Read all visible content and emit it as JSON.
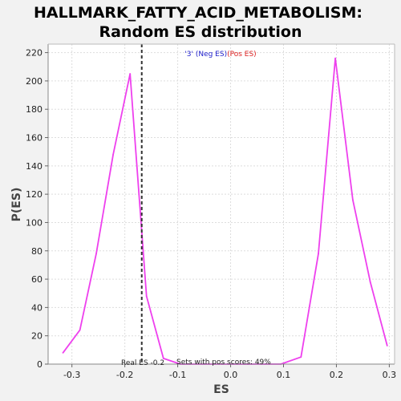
{
  "chart_data": {
    "type": "line",
    "title": "HALLMARK_FATTY_ACID_METABOLISM:",
    "subtitle": "Random ES distribution",
    "xlabel": "ES",
    "ylabel": "P(ES)",
    "xlim": [
      -0.345,
      0.31
    ],
    "ylim": [
      0,
      226
    ],
    "xticks": [
      "-0.3",
      "-0.2",
      "-0.1",
      "0.0",
      "0.1",
      "0.2",
      "0.3"
    ],
    "xtick_values": [
      -0.3,
      -0.2,
      -0.1,
      0.0,
      0.1,
      0.2,
      0.3
    ],
    "yticks": [
      "0",
      "20",
      "40",
      "60",
      "80",
      "100",
      "120",
      "140",
      "160",
      "180",
      "200",
      "220"
    ],
    "ytick_values": [
      0,
      20,
      40,
      60,
      80,
      100,
      120,
      140,
      160,
      180,
      200,
      220
    ],
    "grid": true,
    "series": [
      {
        "color": "#ee40ee",
        "x": [
          -0.317,
          -0.285,
          -0.254,
          -0.222,
          -0.19,
          -0.159,
          -0.127,
          -0.095,
          -0.064,
          -0.032,
          0.0,
          0.032,
          0.064,
          0.095,
          0.133,
          0.166,
          0.198,
          0.231,
          0.264,
          0.296
        ],
        "y": [
          8,
          24,
          78,
          148,
          205,
          48,
          4,
          0,
          0,
          0,
          0,
          0,
          0,
          0,
          5,
          78,
          216,
          116,
          58,
          13
        ]
      }
    ],
    "real_es": {
      "x": -0.168,
      "color": "#333333",
      "label": "Real ES -0.2"
    },
    "pos_scores_label": "Sets with pos scores: 49%",
    "legend": {
      "position": "top-center",
      "neg_label": "'3' (Neg ES)",
      "neg_color": "#2222cc",
      "pos_label": "(Pos ES)",
      "pos_color": "#dd2222"
    },
    "colors": {
      "background": "#f2f2f2",
      "plot_bg": "#ffffff",
      "grid": "#dddddd"
    }
  }
}
